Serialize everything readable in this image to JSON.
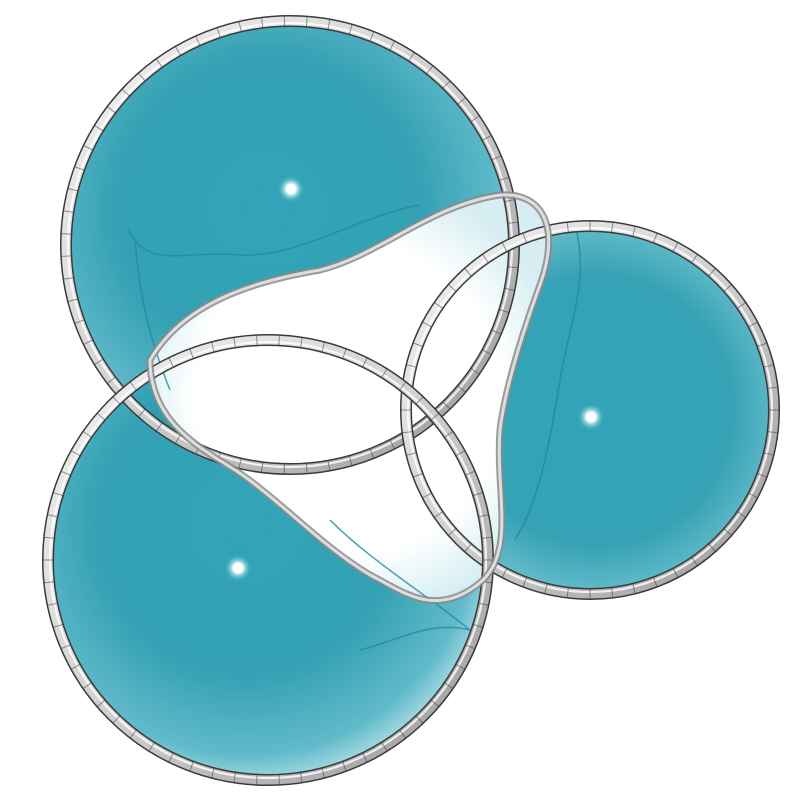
{
  "scene": {
    "subject": "three-lobed-soap-film-surface",
    "colors": {
      "background": "#ffffff",
      "film": "#2a9fb3",
      "film_light": "#a9dde6",
      "film_dark": "#1f8aa0",
      "wire": "#d9d9d9",
      "wire_shadow": "#8a8a8a",
      "wire_edge": "#3a3a3a",
      "highlight": "#e8fdff"
    }
  }
}
